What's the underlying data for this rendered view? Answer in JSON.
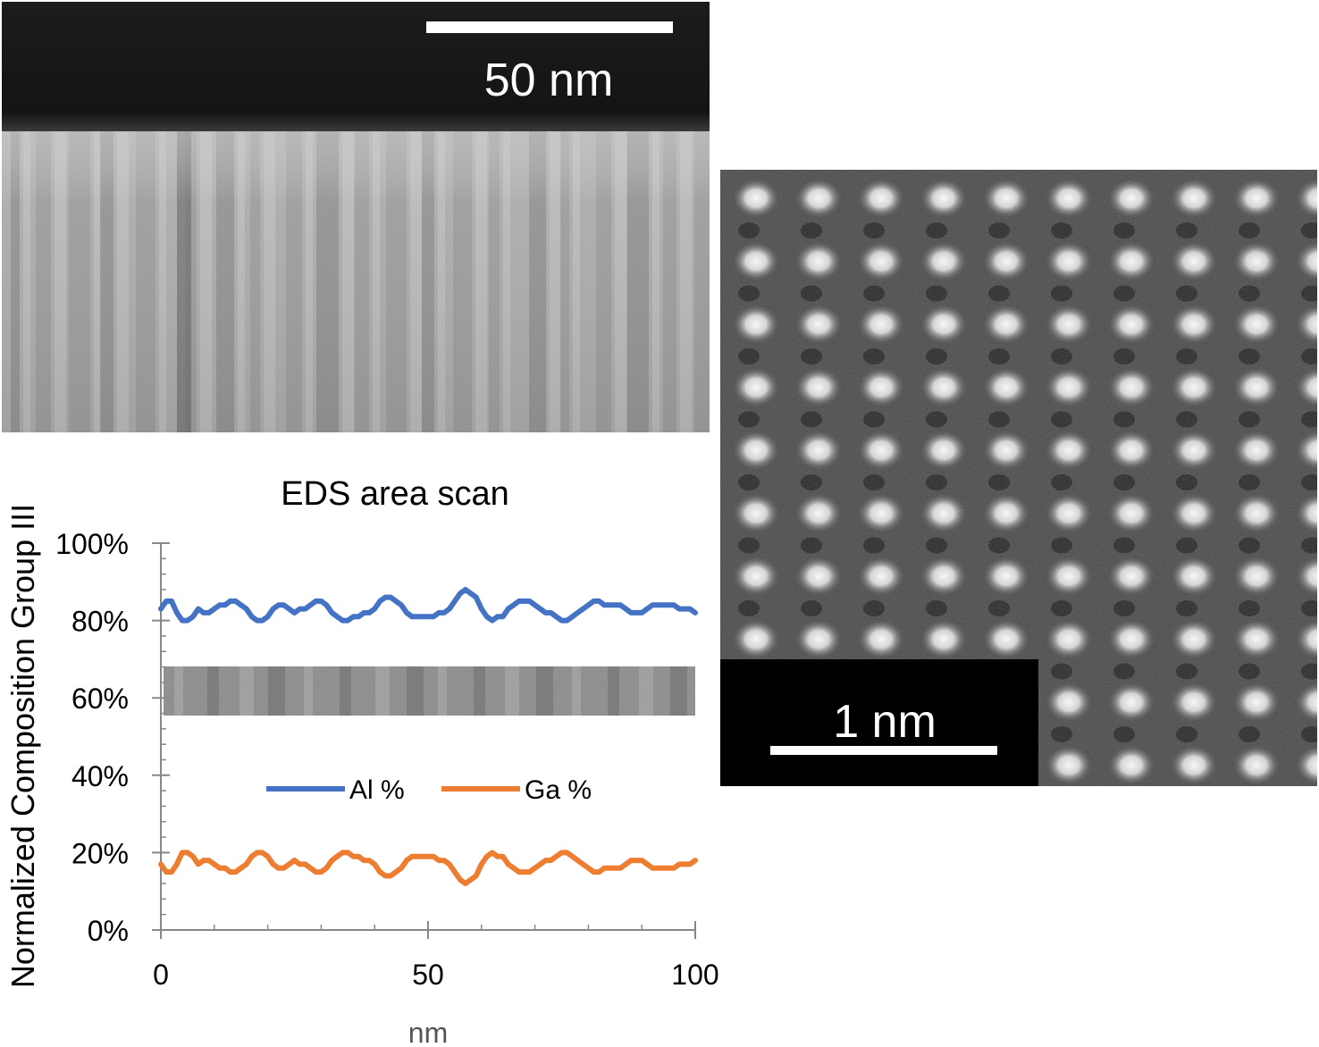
{
  "stem_top": {
    "scale_bar_label": "50 nm"
  },
  "stem_atomic": {
    "scale_bar_label": "1 nm"
  },
  "chart_data": {
    "type": "line",
    "title": "EDS area scan",
    "xlabel": "nm",
    "ylabel": "Normalized Composition Group III",
    "xlim": [
      0,
      100
    ],
    "ylim": [
      0,
      100
    ],
    "x_ticks": [
      0,
      50,
      100
    ],
    "y_ticks": [
      "0%",
      "20%",
      "40%",
      "60%",
      "80%",
      "100%"
    ],
    "y_tick_values": [
      0,
      20,
      40,
      60,
      80,
      100
    ],
    "legend_placement": "center",
    "grid": false,
    "x": [
      0,
      1,
      2,
      3,
      4,
      5,
      6,
      7,
      8,
      9,
      10,
      11,
      12,
      13,
      14,
      15,
      16,
      17,
      18,
      19,
      20,
      21,
      22,
      23,
      24,
      25,
      26,
      27,
      28,
      29,
      30,
      31,
      32,
      33,
      34,
      35,
      36,
      37,
      38,
      39,
      40,
      41,
      42,
      43,
      44,
      45,
      46,
      47,
      48,
      49,
      50,
      51,
      52,
      53,
      54,
      55,
      56,
      57,
      58,
      59,
      60,
      61,
      62,
      63,
      64,
      65,
      66,
      67,
      68,
      69,
      70,
      71,
      72,
      73,
      74,
      75,
      76,
      77,
      78,
      79,
      80,
      81,
      82,
      83,
      84,
      85,
      86,
      87,
      88,
      89,
      90,
      91,
      92,
      93,
      94,
      95,
      96,
      97,
      98,
      99,
      100
    ],
    "series": [
      {
        "name": "Al %",
        "color": "#4472C4",
        "values": [
          83,
          85,
          85,
          82,
          80,
          80,
          81,
          83,
          82,
          82,
          83,
          84,
          84,
          85,
          85,
          84,
          83,
          81,
          80,
          80,
          81,
          83,
          84,
          84,
          83,
          82,
          83,
          83,
          84,
          85,
          85,
          84,
          82,
          81,
          80,
          80,
          81,
          81,
          82,
          82,
          83,
          85,
          86,
          86,
          85,
          84,
          82,
          81,
          81,
          81,
          81,
          81,
          82,
          82,
          83,
          85,
          87,
          88,
          87,
          86,
          83,
          81,
          80,
          81,
          81,
          83,
          84,
          85,
          85,
          85,
          84,
          83,
          82,
          82,
          81,
          80,
          80,
          81,
          82,
          83,
          84,
          85,
          85,
          84,
          84,
          84,
          84,
          83,
          82,
          82,
          82,
          83,
          84,
          84,
          84,
          84,
          84,
          83,
          83,
          83,
          82
        ]
      },
      {
        "name": "Ga %",
        "color": "#ED7D31",
        "values": [
          17,
          15,
          15,
          17,
          20,
          20,
          19,
          17,
          18,
          18,
          17,
          16,
          16,
          15,
          15,
          16,
          17,
          19,
          20,
          20,
          19,
          17,
          16,
          16,
          17,
          18,
          17,
          17,
          16,
          15,
          15,
          16,
          18,
          19,
          20,
          20,
          19,
          19,
          18,
          18,
          17,
          15,
          14,
          14,
          15,
          16,
          18,
          19,
          19,
          19,
          19,
          19,
          18,
          18,
          17,
          15,
          13,
          12,
          13,
          14,
          17,
          19,
          20,
          19,
          19,
          17,
          16,
          15,
          15,
          15,
          16,
          17,
          18,
          18,
          19,
          20,
          20,
          19,
          18,
          17,
          16,
          15,
          15,
          16,
          16,
          16,
          16,
          17,
          18,
          18,
          18,
          17,
          16,
          16,
          16,
          16,
          16,
          17,
          17,
          17,
          18
        ]
      }
    ]
  }
}
